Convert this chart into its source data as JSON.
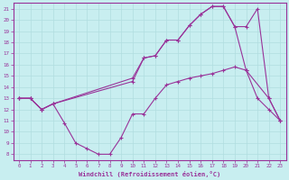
{
  "bg_color": "#c8eef0",
  "line_color": "#993399",
  "grid_color": "#b0dde0",
  "xlabel": "Windchill (Refroidissement éolien,°C)",
  "xlim": [
    -0.5,
    23.5
  ],
  "ylim": [
    7.5,
    21.5
  ],
  "yticks": [
    8,
    9,
    10,
    11,
    12,
    13,
    14,
    15,
    16,
    17,
    18,
    19,
    20,
    21
  ],
  "xticks": [
    0,
    1,
    2,
    3,
    4,
    5,
    6,
    7,
    8,
    9,
    10,
    11,
    12,
    13,
    14,
    15,
    16,
    17,
    18,
    19,
    20,
    21,
    22,
    23
  ],
  "line1_x": [
    0,
    1,
    2,
    3,
    4,
    5,
    6,
    7,
    8,
    9,
    10,
    11,
    12,
    13,
    14,
    15,
    16,
    17,
    18,
    19,
    20,
    21,
    22,
    23
  ],
  "line1_y": [
    13,
    13,
    12,
    12.5,
    10.8,
    9.0,
    8.5,
    8.0,
    8.0,
    9.5,
    11.6,
    11.6,
    13.0,
    14.2,
    14.5,
    14.8,
    15.0,
    15.2,
    15.5,
    15.8,
    15.5,
    13.0,
    12.0,
    11.0
  ],
  "line2_x": [
    0,
    1,
    2,
    3,
    10,
    11,
    12,
    13,
    14,
    15,
    16,
    17,
    18,
    19,
    20,
    21,
    22,
    23
  ],
  "line2_y": [
    13,
    13,
    12,
    12.5,
    14.8,
    16.6,
    16.8,
    18.2,
    18.2,
    19.5,
    20.5,
    21.2,
    21.2,
    19.4,
    19.4,
    21.0,
    13.0,
    11.0
  ],
  "line3_x": [
    0,
    1,
    2,
    3,
    10,
    11,
    12,
    13,
    14,
    15,
    16,
    17,
    18,
    19,
    20,
    22,
    23
  ],
  "line3_y": [
    13,
    13,
    12,
    12.5,
    14.5,
    16.6,
    16.8,
    18.2,
    18.2,
    19.5,
    20.5,
    21.2,
    21.2,
    19.4,
    15.5,
    13.0,
    11.0
  ]
}
